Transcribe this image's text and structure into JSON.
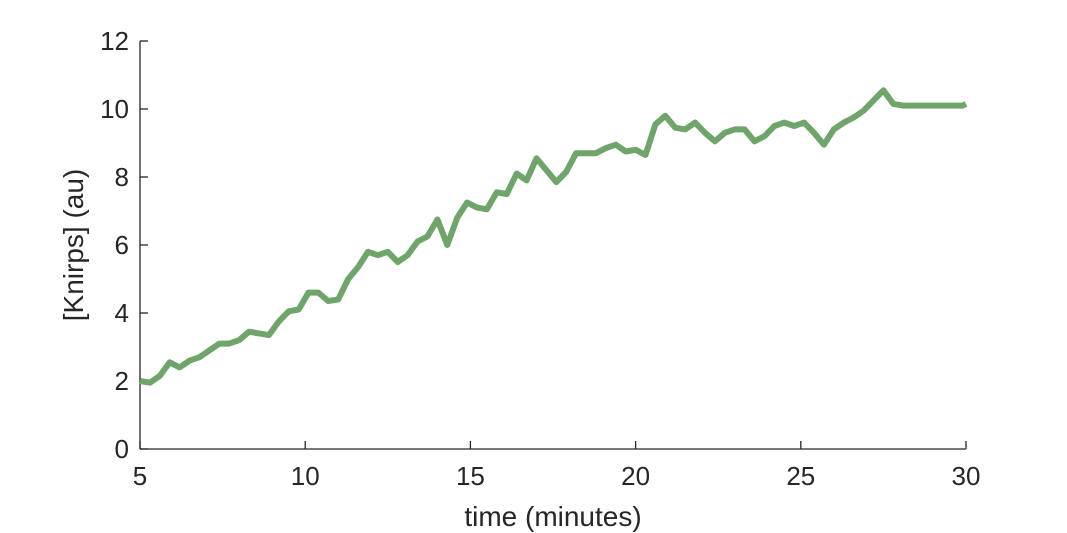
{
  "chart_data": {
    "type": "line",
    "title": "",
    "xlabel": "time (minutes)",
    "ylabel": "[Knirps] (au)",
    "xlim": [
      5,
      30
    ],
    "ylim": [
      0,
      12
    ],
    "xticks": [
      5,
      10,
      15,
      20,
      25,
      30
    ],
    "yticks": [
      0,
      2,
      4,
      6,
      8,
      10,
      12
    ],
    "grid": false,
    "series": [
      {
        "color": "#6fa56a",
        "x": [
          5.0,
          5.3,
          5.6,
          5.9,
          6.2,
          6.5,
          6.8,
          7.1,
          7.4,
          7.7,
          8.0,
          8.3,
          8.6,
          8.9,
          9.2,
          9.5,
          9.8,
          10.1,
          10.4,
          10.7,
          11.0,
          11.3,
          11.6,
          11.9,
          12.2,
          12.5,
          12.8,
          13.1,
          13.4,
          13.7,
          14.0,
          14.3,
          14.6,
          14.9,
          15.2,
          15.5,
          15.8,
          16.1,
          16.4,
          16.7,
          17.0,
          17.3,
          17.6,
          17.9,
          18.2,
          18.5,
          18.8,
          19.1,
          19.4,
          19.7,
          20.0,
          20.3,
          20.6,
          20.9,
          21.2,
          21.5,
          21.8,
          22.1,
          22.4,
          22.7,
          23.0,
          23.3,
          23.6,
          23.9,
          24.2,
          24.5,
          24.8,
          25.1,
          25.4,
          25.7,
          26.0,
          26.3,
          26.6,
          26.9,
          27.2,
          27.5,
          27.8,
          28.1,
          28.4,
          28.7,
          29.0,
          29.3,
          29.6,
          29.9,
          30.0
        ],
        "y": [
          2.0,
          1.95,
          2.15,
          2.55,
          2.4,
          2.6,
          2.7,
          2.9,
          3.1,
          3.1,
          3.2,
          3.45,
          3.4,
          3.35,
          3.75,
          4.05,
          4.1,
          4.6,
          4.6,
          4.35,
          4.4,
          5.0,
          5.35,
          5.8,
          5.7,
          5.8,
          5.5,
          5.7,
          6.1,
          6.25,
          6.75,
          6.0,
          6.8,
          7.25,
          7.1,
          7.05,
          7.55,
          7.5,
          8.1,
          7.9,
          8.55,
          8.2,
          7.85,
          8.15,
          8.7,
          8.7,
          8.7,
          8.85,
          8.95,
          8.75,
          8.8,
          8.65,
          9.55,
          9.8,
          9.45,
          9.4,
          9.6,
          9.3,
          9.05,
          9.3,
          9.4,
          9.4,
          9.05,
          9.2,
          9.5,
          9.6,
          9.5,
          9.6,
          9.3,
          8.95,
          9.4,
          9.6,
          9.75,
          9.95,
          10.25,
          10.55,
          10.15,
          10.1,
          10.1,
          10.1,
          10.1,
          10.1,
          10.1,
          10.1,
          10.15
        ]
      }
    ]
  }
}
